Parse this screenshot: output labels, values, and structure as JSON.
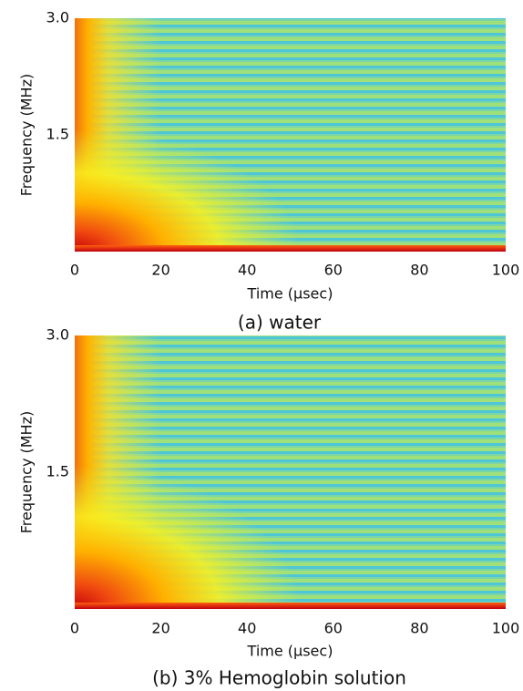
{
  "chart_data": [
    {
      "type": "spectrogram",
      "caption": "(a) water",
      "xlabel": "Time (μsec)",
      "ylabel": "Frequency (MHz)",
      "xlim": [
        0,
        100
      ],
      "ylim": [
        0,
        3
      ],
      "xticks": [
        0,
        20,
        40,
        60,
        80,
        100
      ],
      "yticks": [
        1.5,
        {
          "value": 3,
          "label": "3.0"
        }
      ]
    },
    {
      "type": "spectrogram",
      "caption": "(b) 3% Hemoglobin  solution",
      "xlabel": "Time (μsec)",
      "ylabel": "Frequency (MHz)",
      "xlim": [
        0,
        100
      ],
      "ylim": [
        0,
        3
      ],
      "xticks": [
        0,
        20,
        40,
        60,
        80,
        100
      ],
      "yticks": [
        1.5,
        {
          "value": 3,
          "label": "3.0"
        }
      ]
    }
  ]
}
